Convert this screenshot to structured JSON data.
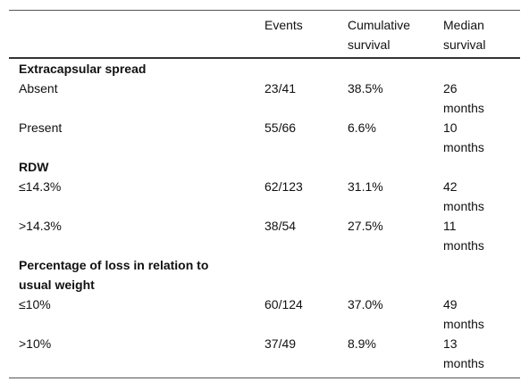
{
  "table": {
    "columns": [
      "Events",
      "Cumulative survival",
      "Median survival"
    ],
    "groups": [
      {
        "label": "Extracapsular spread",
        "rows": [
          [
            "Absent",
            "23/41",
            "38.5%",
            "26 months"
          ],
          [
            "Present",
            "55/66",
            "6.6%",
            "10 months"
          ]
        ]
      },
      {
        "label": "RDW",
        "rows": [
          [
            "≤14.3%",
            "62/123",
            "31.1%",
            "42 months"
          ],
          [
            ">14.3%",
            "38/54",
            "27.5%",
            "11 months"
          ]
        ]
      },
      {
        "label": "Percentage of loss in relation to usual weight",
        "rows": [
          [
            "≤10%",
            "60/124",
            "37.0%",
            "49 months"
          ],
          [
            ">10%",
            "37/49",
            "8.9%",
            "13 months"
          ]
        ]
      }
    ]
  }
}
